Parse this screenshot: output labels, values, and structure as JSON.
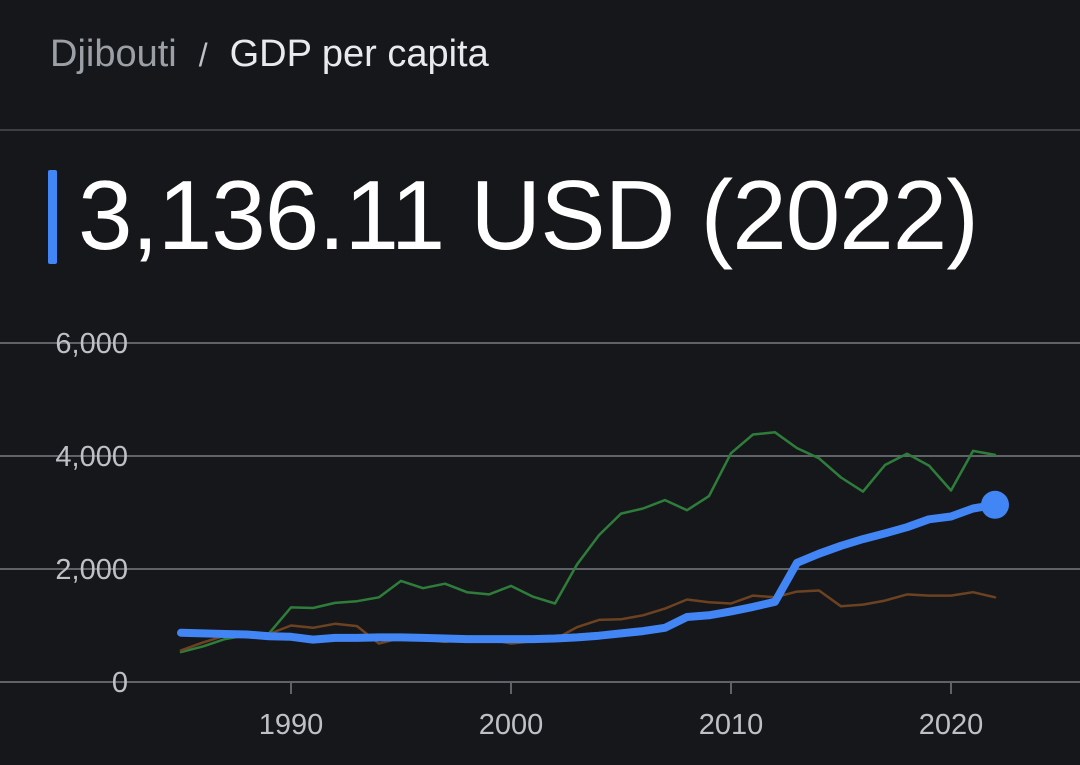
{
  "breadcrumb": {
    "country": "Djibouti",
    "separator": "/",
    "indicator": "GDP per capita"
  },
  "headline": {
    "value_text": "3,136.11 USD (2022)"
  },
  "colors": {
    "background": "#16171b",
    "accent": "#4285f4",
    "grid": "#5f6368",
    "series_green": "#2e7d3a",
    "series_brown": "#6d4220"
  },
  "chart_data": {
    "type": "line",
    "title": "GDP per capita",
    "xlabel": "",
    "ylabel": "",
    "xlim": [
      1984,
      2026
    ],
    "ylim": [
      0,
      6000
    ],
    "x_ticks": [
      1990,
      2000,
      2010,
      2020
    ],
    "y_ticks": [
      0,
      2000,
      4000,
      6000
    ],
    "y_tick_labels": [
      "0",
      "2,000",
      "4,000",
      "6,000"
    ],
    "series": [
      {
        "name": "comparison-green",
        "color": "#2e7d3a",
        "width": 2.5,
        "x": [
          1985,
          1986,
          1987,
          1988,
          1989,
          1990,
          1991,
          1992,
          1993,
          1994,
          1995,
          1996,
          1997,
          1998,
          1999,
          2000,
          2001,
          2002,
          2003,
          2004,
          2005,
          2006,
          2007,
          2008,
          2009,
          2010,
          2011,
          2012,
          2013,
          2014,
          2015,
          2016,
          2017,
          2018,
          2019,
          2020,
          2021,
          2022
        ],
        "values": [
          530,
          630,
          760,
          830,
          860,
          1320,
          1310,
          1400,
          1430,
          1500,
          1790,
          1660,
          1740,
          1590,
          1550,
          1700,
          1510,
          1390,
          2080,
          2600,
          2980,
          3070,
          3220,
          3040,
          3290,
          4050,
          4380,
          4420,
          4140,
          3960,
          3620,
          3370,
          3840,
          4040,
          3830,
          3390,
          4090,
          4020
        ]
      },
      {
        "name": "comparison-brown",
        "color": "#6d4220",
        "width": 2.5,
        "x": [
          1985,
          1986,
          1987,
          1988,
          1989,
          1990,
          1991,
          1992,
          1993,
          1994,
          1995,
          1996,
          1997,
          1998,
          1999,
          2000,
          2001,
          2002,
          2003,
          2004,
          2005,
          2006,
          2007,
          2008,
          2009,
          2010,
          2011,
          2012,
          2013,
          2014,
          2015,
          2016,
          2017,
          2018,
          2019,
          2020,
          2021,
          2022
        ],
        "values": [
          560,
          700,
          820,
          850,
          850,
          1000,
          960,
          1030,
          990,
          680,
          780,
          750,
          710,
          760,
          760,
          680,
          720,
          760,
          970,
          1100,
          1110,
          1180,
          1300,
          1460,
          1410,
          1390,
          1530,
          1500,
          1600,
          1620,
          1340,
          1370,
          1440,
          1550,
          1530,
          1530,
          1590,
          1500
        ]
      },
      {
        "name": "Djibouti",
        "color": "#4285f4",
        "width": 8,
        "highlight_last": true,
        "x": [
          1985,
          1986,
          1987,
          1988,
          1989,
          1990,
          1991,
          1992,
          1993,
          1994,
          1995,
          1996,
          1997,
          1998,
          1999,
          2000,
          2001,
          2002,
          2003,
          2004,
          2005,
          2006,
          2007,
          2008,
          2009,
          2010,
          2011,
          2012,
          2013,
          2014,
          2015,
          2016,
          2017,
          2018,
          2019,
          2020,
          2021,
          2022
        ],
        "values": [
          870,
          860,
          850,
          840,
          810,
          800,
          750,
          780,
          780,
          790,
          790,
          780,
          770,
          760,
          760,
          760,
          760,
          770,
          790,
          820,
          860,
          900,
          960,
          1150,
          1180,
          1250,
          1330,
          1420,
          2110,
          2270,
          2410,
          2530,
          2630,
          2740,
          2880,
          2930,
          3070,
          3136.11
        ]
      }
    ]
  }
}
